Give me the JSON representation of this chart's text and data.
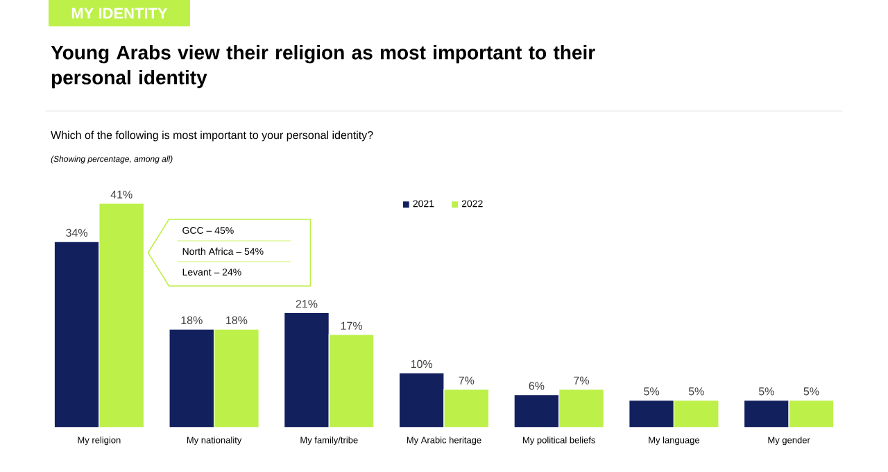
{
  "chart_data": {
    "type": "bar",
    "title": "Young Arabs view their religion as most important to their personal identity",
    "subtitle": "Which of the following is most important to your personal identity?",
    "annotations": [
      "MY IDENTITY",
      "(Showing percentage, among all)",
      "GCC – 45%",
      "North Africa – 54%",
      "Levant – 24%"
    ],
    "categories": [
      "My religion",
      "My nationality",
      "My family/tribe",
      "My Arabic heritage",
      "My political beliefs",
      "My language",
      "My gender"
    ],
    "series": [
      {
        "name": "2021",
        "color": "#12205e",
        "values": [
          34,
          18,
          21,
          10,
          6,
          5,
          5
        ],
        "value_labels": [
          "34%",
          "18%",
          "21%",
          "10%",
          "6%",
          "5%",
          "5%"
        ]
      },
      {
        "name": "2022",
        "color": "#bef04a",
        "values": [
          41,
          18,
          17,
          7,
          7,
          5,
          5
        ],
        "value_labels": [
          "41%",
          "18%",
          "17%",
          "7%",
          "7%",
          "5%",
          "5%"
        ]
      }
    ],
    "legend": "top"
  }
}
